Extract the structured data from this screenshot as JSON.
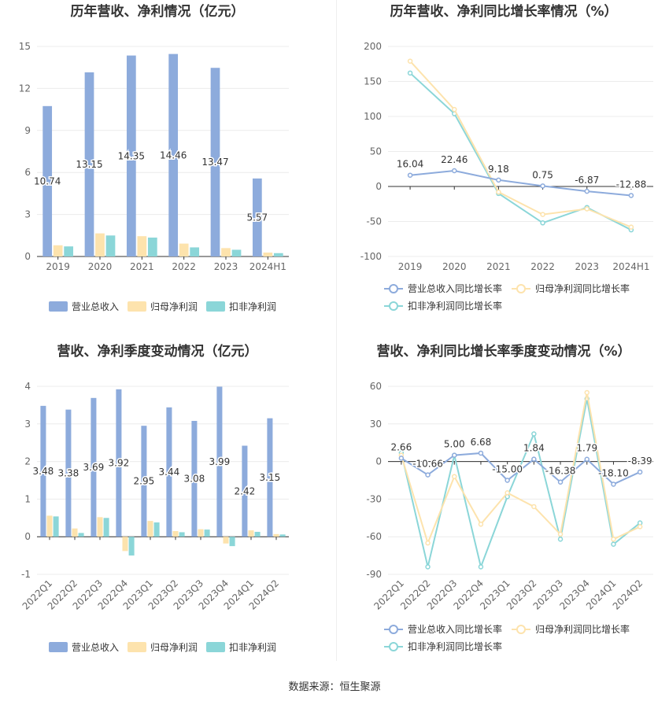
{
  "colors": {
    "revenue": "#8dabdc",
    "net_profit": "#fde3ad",
    "deducted_profit": "#8bd6d8",
    "revenue_line": "#8dabdc",
    "net_line": "#fde3ad",
    "deducted_line": "#8bd6d8"
  },
  "source": "数据来源：恒生聚源",
  "chart_data": [
    {
      "type": "bar",
      "title": "历年营收、净利情况（亿元）",
      "categories": [
        "2019",
        "2020",
        "2021",
        "2022",
        "2023",
        "2024H1"
      ],
      "ylim": [
        0,
        15
      ],
      "yticks": [
        0,
        3,
        6,
        9,
        12,
        15
      ],
      "grid": true,
      "legend_position": "bottom",
      "series": [
        {
          "name": "营业总收入",
          "color_key": "revenue",
          "values": [
            10.74,
            13.15,
            14.35,
            14.46,
            13.47,
            5.57
          ],
          "labels": [
            "10.74",
            "13.15",
            "14.35",
            "14.46",
            "13.47",
            "5.57"
          ]
        },
        {
          "name": "归母净利润",
          "color_key": "net_profit",
          "values": [
            0.8,
            1.65,
            1.45,
            0.92,
            0.6,
            0.28
          ]
        },
        {
          "name": "扣非净利润",
          "color_key": "deducted_profit",
          "values": [
            0.72,
            1.5,
            1.35,
            0.65,
            0.48,
            0.24
          ]
        }
      ]
    },
    {
      "type": "line",
      "title": "历年营收、净利同比增长率情况（%）",
      "categories": [
        "2019",
        "2020",
        "2021",
        "2022",
        "2023",
        "2024H1"
      ],
      "ylim": [
        -100,
        200
      ],
      "yticks": [
        -100,
        -50,
        0,
        50,
        100,
        150,
        200
      ],
      "grid": true,
      "legend_position": "bottom",
      "series": [
        {
          "name": "营业总收入同比增长率",
          "color_key": "revenue_line",
          "values": [
            16.04,
            22.46,
            9.18,
            0.75,
            -6.87,
            -12.88
          ],
          "labels": [
            "16.04",
            "22.46",
            "9.18",
            "0.75",
            "-6.87",
            "-12.88"
          ]
        },
        {
          "name": "归母净利润同比增长率",
          "color_key": "net_line",
          "values": [
            179,
            110,
            -8,
            -40,
            -32,
            -58
          ]
        },
        {
          "name": "扣非净利润同比增长率",
          "color_key": "deducted_line",
          "values": [
            162,
            104,
            -10,
            -52,
            -30,
            -62
          ]
        }
      ]
    },
    {
      "type": "bar",
      "title": "营收、净利季度变动情况（亿元）",
      "categories": [
        "2022Q1",
        "2022Q2",
        "2022Q3",
        "2022Q4",
        "2023Q1",
        "2023Q2",
        "2023Q3",
        "2023Q4",
        "2024Q1",
        "2024Q2"
      ],
      "ylim": [
        -1,
        4
      ],
      "yticks": [
        -1,
        0,
        1,
        2,
        3,
        4
      ],
      "grid": true,
      "legend_position": "bottom",
      "series": [
        {
          "name": "营业总收入",
          "color_key": "revenue",
          "values": [
            3.48,
            3.38,
            3.69,
            3.92,
            2.95,
            3.44,
            3.08,
            3.99,
            2.42,
            3.15
          ],
          "labels": [
            "3.48",
            "3.38",
            "3.69",
            "3.92",
            "2.95",
            "3.44",
            "3.08",
            "3.99",
            "2.42",
            "3.15"
          ]
        },
        {
          "name": "归母净利润",
          "color_key": "net_profit",
          "values": [
            0.56,
            0.22,
            0.52,
            -0.38,
            0.42,
            0.15,
            0.2,
            -0.18,
            0.17,
            0.07
          ]
        },
        {
          "name": "扣非净利润",
          "color_key": "deducted_profit",
          "values": [
            0.54,
            0.1,
            0.5,
            -0.5,
            0.38,
            0.12,
            0.19,
            -0.25,
            0.13,
            0.06
          ]
        }
      ]
    },
    {
      "type": "line",
      "title": "营收、净利同比增长率季度变动情况（%）",
      "categories": [
        "2022Q1",
        "2022Q2",
        "2022Q3",
        "2022Q4",
        "2023Q1",
        "2023Q2",
        "2023Q3",
        "2023Q4",
        "2024Q1",
        "2024Q2"
      ],
      "ylim": [
        -90,
        60
      ],
      "yticks": [
        -90,
        -60,
        -30,
        0,
        30,
        60
      ],
      "grid": true,
      "legend_position": "bottom",
      "series": [
        {
          "name": "营业总收入同比增长率",
          "color_key": "revenue_line",
          "values": [
            2.66,
            -10.66,
            5.0,
            6.68,
            -15.0,
            1.84,
            -16.38,
            1.79,
            -18.1,
            -8.39
          ],
          "labels": [
            "2.66",
            "-10.66",
            "5.00",
            "6.68",
            "-15.00",
            "1.84",
            "-16.38",
            "1.79",
            "-18.10",
            "-8.39"
          ]
        },
        {
          "name": "归母净利润同比增长率",
          "color_key": "net_line",
          "values": [
            5,
            -65,
            -12,
            -50,
            -25,
            -36,
            -58,
            55,
            -62,
            -52
          ]
        },
        {
          "name": "扣非净利润同比增长率",
          "color_key": "deducted_line",
          "values": [
            7,
            -84,
            5,
            -84,
            -28,
            22,
            -62,
            50,
            -66,
            -49
          ]
        }
      ]
    }
  ]
}
